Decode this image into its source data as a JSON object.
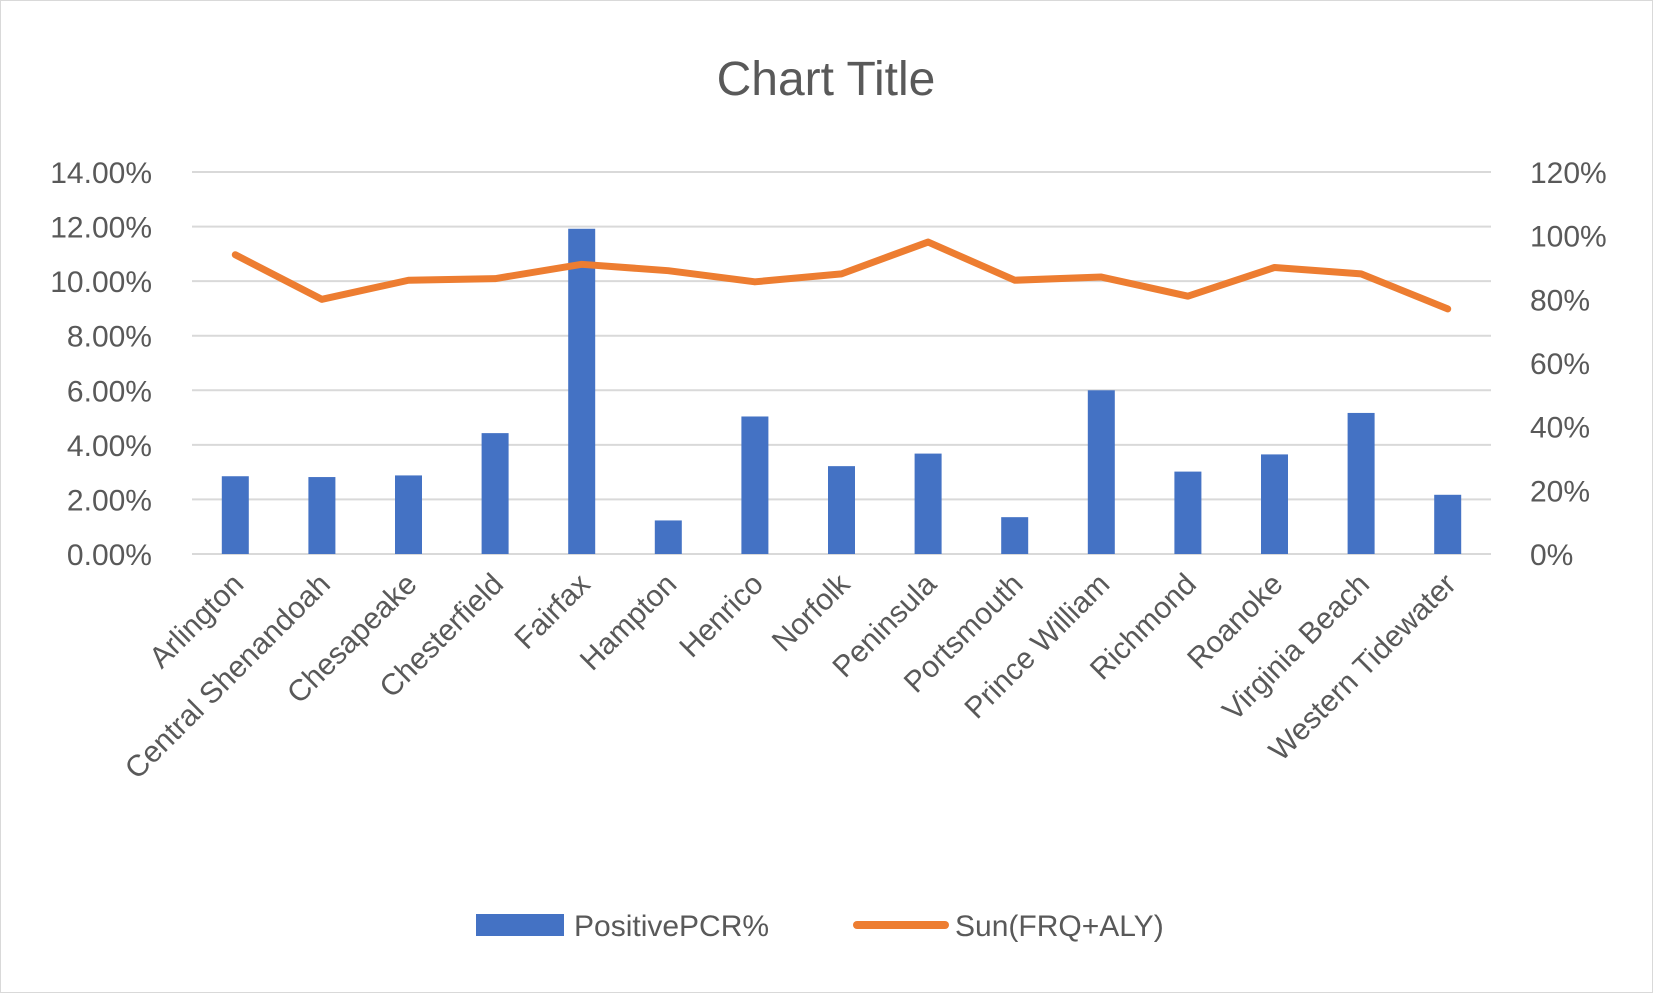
{
  "chart_data": {
    "type": "bar",
    "title": "Chart Title",
    "categories": [
      "Arlington",
      "Central Shenandoah",
      "Chesapeake",
      "Chesterfield",
      "Fairfax",
      "Hampton",
      "Henrico",
      "Norfolk",
      "Peninsula",
      "Portsmouth",
      "Prince William",
      "Richmond",
      "Roanoke",
      "Virginia Beach",
      "Western Tidewater"
    ],
    "series": [
      {
        "name": "PositivePCR%",
        "type": "bar",
        "axis": "left",
        "color": "#4472c4",
        "values": [
          0.0285,
          0.0282,
          0.0288,
          0.0443,
          0.1192,
          0.0123,
          0.0504,
          0.0322,
          0.0368,
          0.0135,
          0.06,
          0.0302,
          0.0365,
          0.0517,
          0.0217
        ]
      },
      {
        "name": "Sun(FRQ+ALY)",
        "type": "line",
        "axis": "right",
        "color": "#ed7d31",
        "values": [
          0.94,
          0.8,
          0.86,
          0.865,
          0.91,
          0.89,
          0.855,
          0.88,
          0.98,
          0.86,
          0.87,
          0.81,
          0.9,
          0.88,
          0.77
        ]
      }
    ],
    "y_left": {
      "min": 0,
      "max": 0.14,
      "step": 0.02,
      "ticks": [
        "0.00%",
        "2.00%",
        "4.00%",
        "6.00%",
        "8.00%",
        "10.00%",
        "12.00%",
        "14.00%"
      ]
    },
    "y_right": {
      "min": 0,
      "max": 1.2,
      "step": 0.2,
      "ticks": [
        "0%",
        "20%",
        "40%",
        "60%",
        "80%",
        "100%",
        "120%"
      ]
    },
    "grid": true,
    "legend_position": "bottom"
  }
}
